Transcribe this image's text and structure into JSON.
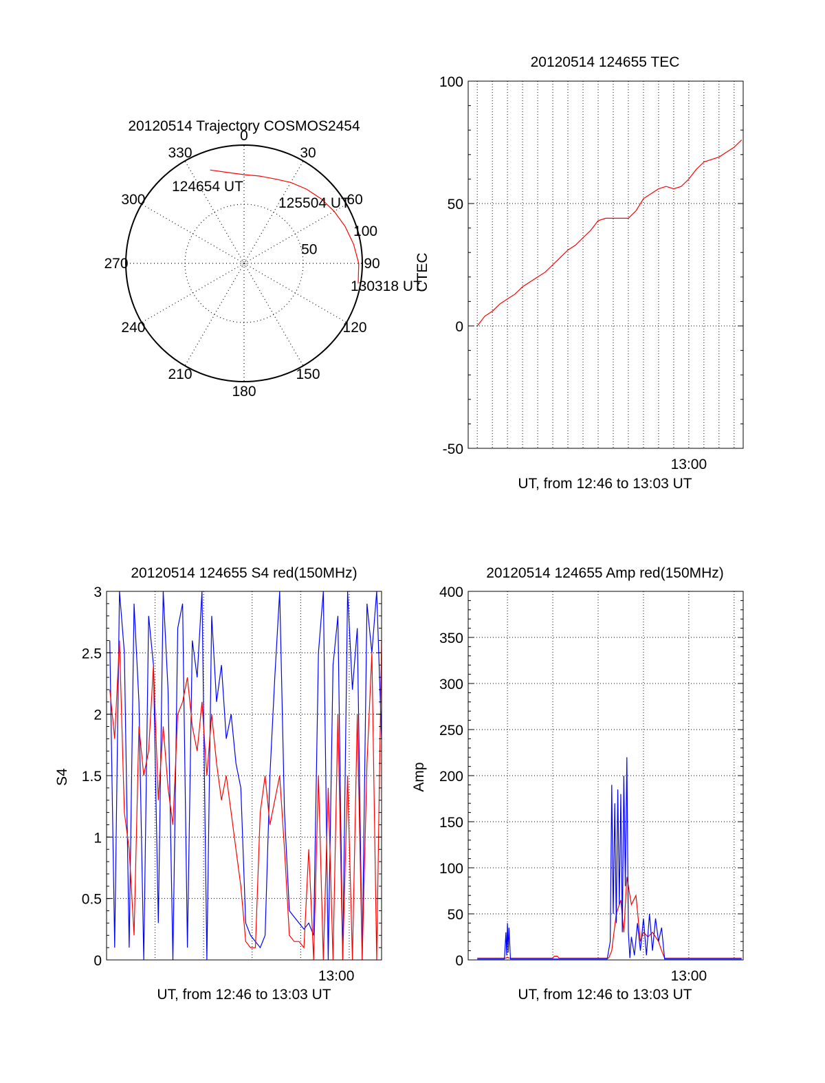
{
  "chart_data": [
    {
      "type": "polar",
      "title": "20120514 Trajectory COSMOS2454",
      "azimuth_labels": [
        "0",
        "30",
        "60",
        "90",
        "120",
        "150",
        "180",
        "210",
        "240",
        "270",
        "300",
        "330"
      ],
      "elevation_rings": [
        0,
        50,
        100
      ],
      "ring_labels": [
        "50",
        "100"
      ],
      "series": [
        {
          "color": "#ff0000",
          "points": [
            {
              "az": 340,
              "zenith": 84
            },
            {
              "az": 350,
              "zenith": 78
            },
            {
              "az": 0,
              "zenith": 75
            },
            {
              "az": 10,
              "zenith": 75
            },
            {
              "az": 20,
              "zenith": 76
            },
            {
              "az": 30,
              "zenith": 79
            },
            {
              "az": 40,
              "zenith": 82
            },
            {
              "az": 50,
              "zenith": 85
            },
            {
              "az": 60,
              "zenith": 88
            },
            {
              "az": 70,
              "zenith": 91
            },
            {
              "az": 80,
              "zenith": 94
            },
            {
              "az": 90,
              "zenith": 97
            },
            {
              "az": 100,
              "zenith": 98
            }
          ]
        }
      ],
      "annotations": [
        "124654 UT",
        "125504 UT",
        "130318 UT"
      ],
      "colors": {
        "axis": "#000000",
        "grid": "#000000",
        "track": "#ff0000"
      }
    },
    {
      "type": "line",
      "title": "20120514 124655 TEC",
      "xlabel": "UT, from 12:46 to 13:03 UT",
      "ylabel": "CTEC",
      "xlim": [
        -0.6,
        17.6
      ],
      "ylim": [
        -50,
        100
      ],
      "yticks": [
        "-50",
        "0",
        "50",
        "100"
      ],
      "xtick_labels": [
        {
          "x": 14,
          "label": "13:00"
        }
      ],
      "grid": true,
      "series": [
        {
          "color": "#ff0000",
          "x": [
            0.0,
            0.5,
            1.0,
            1.5,
            2.0,
            2.5,
            3.0,
            3.5,
            4.0,
            4.5,
            5.0,
            5.5,
            6.0,
            6.5,
            7.0,
            7.5,
            8.0,
            8.5,
            9.0,
            9.5,
            10.0,
            10.5,
            11.0,
            11.5,
            12.0,
            12.5,
            13.0,
            13.5,
            14.0,
            14.5,
            15.0,
            15.5,
            16.0,
            16.5,
            17.0,
            17.5
          ],
          "y": [
            0,
            4,
            6,
            9,
            11,
            13,
            16,
            18,
            20,
            22,
            25,
            28,
            31,
            33,
            36,
            39,
            43,
            44,
            44,
            44,
            44,
            47,
            52,
            54,
            56,
            57,
            56,
            57,
            60,
            64,
            67,
            68,
            69,
            71,
            73,
            76
          ]
        }
      ]
    },
    {
      "type": "line",
      "title": "20120514 124655 S4 red(150MHz)",
      "xlabel": "UT, from 12:46 to 13:03 UT",
      "ylabel": "S4",
      "xlim": [
        0.0,
        17.0
      ],
      "ylim": [
        0,
        3
      ],
      "yticks": [
        "0",
        "0.5",
        "1",
        "1.5",
        "2",
        "2.5",
        "3"
      ],
      "xtick_labels": [
        {
          "x": 14.2,
          "label": "13:00"
        }
      ],
      "grid": true,
      "series": [
        {
          "color": "#0000ff",
          "x": [
            0.2,
            0.5,
            0.8,
            1.1,
            1.4,
            1.7,
            2.0,
            2.3,
            2.6,
            2.9,
            3.2,
            3.5,
            3.8,
            4.1,
            4.4,
            4.7,
            5.0,
            5.3,
            5.6,
            5.9,
            6.2,
            6.5,
            6.8,
            7.1,
            7.4,
            7.7,
            8.0,
            8.3,
            8.6,
            8.9,
            9.2,
            9.5,
            9.8,
            10.1,
            10.4,
            10.7,
            11.0,
            11.3,
            11.6,
            11.9,
            12.2,
            12.5,
            12.8,
            13.1,
            13.4,
            13.7,
            14.0,
            14.3,
            14.6,
            14.9,
            15.2,
            15.5,
            15.8,
            16.1,
            16.4,
            16.7,
            17.0
          ],
          "y": [
            2.6,
            0.1,
            3.0,
            2.5,
            0.1,
            2.9,
            2.1,
            0.0,
            2.8,
            2.4,
            0.3,
            3.0,
            2.2,
            0.0,
            2.7,
            2.9,
            0.1,
            2.6,
            2.3,
            3.0,
            0.0,
            2.8,
            2.1,
            2.4,
            1.8,
            2.0,
            1.6,
            1.4,
            0.3,
            0.2,
            0.15,
            0.1,
            0.2,
            1.5,
            2.3,
            3.0,
            1.2,
            0.4,
            0.35,
            0.3,
            0.25,
            0.3,
            0.2,
            2.5,
            3.0,
            0.0,
            2.4,
            2.8,
            0.0,
            3.0,
            2.2,
            2.7,
            0.0,
            2.9,
            2.5,
            3.0,
            1.8
          ]
        },
        {
          "color": "#ff0000",
          "x": [
            0.2,
            0.5,
            0.8,
            1.1,
            1.4,
            1.7,
            2.0,
            2.3,
            2.6,
            2.9,
            3.2,
            3.5,
            3.8,
            4.1,
            4.4,
            4.7,
            5.0,
            5.3,
            5.6,
            5.9,
            6.2,
            6.5,
            6.8,
            7.1,
            7.4,
            7.7,
            8.0,
            8.3,
            8.6,
            8.9,
            9.2,
            9.5,
            9.8,
            10.1,
            10.4,
            10.7,
            11.0,
            11.3,
            11.6,
            11.9,
            12.2,
            12.5,
            12.8,
            13.1,
            13.4,
            13.7,
            14.0,
            14.3,
            14.6,
            14.9,
            15.2,
            15.5,
            15.8,
            16.1,
            16.4,
            16.7,
            17.0
          ],
          "y": [
            2.2,
            1.8,
            2.6,
            1.2,
            0.9,
            0.2,
            1.9,
            1.5,
            1.7,
            2.4,
            1.3,
            1.9,
            1.4,
            1.1,
            2.0,
            2.1,
            2.3,
            1.9,
            1.7,
            2.1,
            1.5,
            2.0,
            1.6,
            1.3,
            1.5,
            1.2,
            0.9,
            0.6,
            0.15,
            0.1,
            0.1,
            1.2,
            1.5,
            1.1,
            1.3,
            1.5,
            0.9,
            0.2,
            0.15,
            0.15,
            0.1,
            0.9,
            0.0,
            1.5,
            0.0,
            1.4,
            0.0,
            2.0,
            0.0,
            1.5,
            0.0,
            2.0,
            0.0,
            1.6,
            2.5,
            0.0,
            2.6
          ]
        }
      ]
    },
    {
      "type": "line",
      "title": "20120514 124655 Amp red(150MHz)",
      "xlabel": "UT, from 12:46 to 13:03 UT",
      "ylabel": "Amp",
      "xlim": [
        -0.6,
        17.6
      ],
      "ylim": [
        0,
        400
      ],
      "yticks": [
        "0",
        "50",
        "100",
        "150",
        "200",
        "250",
        "300",
        "350",
        "400"
      ],
      "xtick_labels": [
        {
          "x": 14,
          "label": "13:00"
        }
      ],
      "grid": true,
      "series": [
        {
          "color": "#ff0000",
          "x": [
            0.0,
            1.9,
            2.0,
            2.1,
            5.0,
            5.1,
            5.3,
            5.4,
            8.7,
            8.9,
            9.2,
            9.5,
            9.7,
            9.9,
            10.2,
            10.5,
            10.8,
            11.0,
            11.3,
            11.6,
            12.0,
            12.2,
            12.4,
            17.5
          ],
          "y": [
            2,
            2,
            3,
            2,
            2,
            4,
            4,
            2,
            2,
            10,
            50,
            65,
            30,
            90,
            60,
            70,
            20,
            30,
            25,
            30,
            20,
            10,
            2,
            2
          ]
        },
        {
          "color": "#0000ff",
          "x": [
            0.0,
            1.8,
            1.9,
            1.95,
            2.0,
            2.05,
            2.1,
            2.2,
            8.6,
            8.8,
            8.9,
            9.0,
            9.1,
            9.2,
            9.3,
            9.4,
            9.5,
            9.6,
            9.7,
            9.8,
            9.9,
            10.0,
            10.1,
            10.2,
            10.4,
            10.6,
            10.8,
            11.0,
            11.2,
            11.4,
            11.6,
            11.8,
            12.0,
            12.2,
            12.4,
            17.5
          ],
          "y": [
            1,
            1,
            30,
            5,
            40,
            8,
            35,
            1,
            1,
            20,
            190,
            50,
            170,
            40,
            185,
            60,
            180,
            30,
            200,
            80,
            220,
            30,
            2,
            25,
            5,
            40,
            10,
            45,
            5,
            50,
            10,
            45,
            20,
            35,
            1,
            1
          ]
        }
      ]
    }
  ]
}
